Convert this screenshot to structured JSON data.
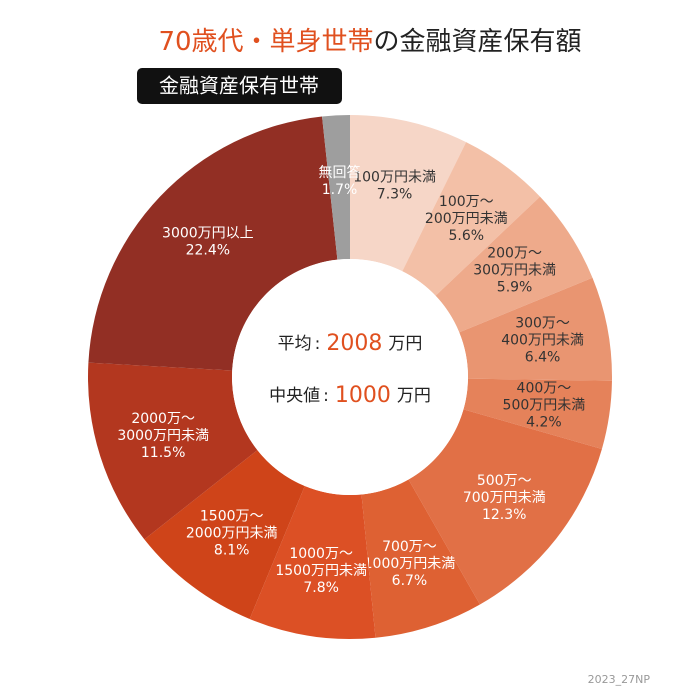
{
  "chart_data": {
    "type": "pie",
    "title": [
      "70歳代・単身世帯",
      "の金融資産保有額"
    ],
    "title_colors": [
      "#e0501f",
      "#222222"
    ],
    "subtitle": "金融資産保有世帯",
    "categories": [
      [
        "100万円未満"
      ],
      [
        "100万〜",
        "200万円未満"
      ],
      [
        "200万〜",
        "300万円未満"
      ],
      [
        "300万〜",
        "400万円未満"
      ],
      [
        "400万〜",
        "500万円未満"
      ],
      [
        "500万〜",
        "700万円未満"
      ],
      [
        "700万〜",
        "1000万円未満"
      ],
      [
        "1000万〜",
        "1500万円未満"
      ],
      [
        "1500万〜",
        "2000万円未満"
      ],
      [
        "2000万〜",
        "3000万円未満"
      ],
      [
        "3000万円以上"
      ],
      [
        "無回答"
      ]
    ],
    "values": [
      7.3,
      5.6,
      5.9,
      6.4,
      4.2,
      12.3,
      6.7,
      7.8,
      8.1,
      11.5,
      22.4,
      1.7
    ],
    "value_labels": [
      "7.3%",
      "5.6%",
      "5.9%",
      "6.4%",
      "4.2%",
      "12.3%",
      "6.7%",
      "7.8%",
      "8.1%",
      "11.5%",
      "22.4%",
      "1.7%"
    ],
    "colors": [
      "#f6d6c7",
      "#f3c0a7",
      "#eeaa8b",
      "#e99571",
      "#e5825a",
      "#e17046",
      "#de6133",
      "#dc5025",
      "#cf4419",
      "#b3371f",
      "#922f24",
      "#9e9e9e"
    ],
    "label_colors": [
      "#333333",
      "#333333",
      "#333333",
      "#333333",
      "#333333",
      "#ffffff",
      "#ffffff",
      "#ffffff",
      "#ffffff",
      "#ffffff",
      "#ffffff",
      "#ffffff"
    ],
    "center": [
      {
        "label": "平均",
        "separator": ":",
        "value": 2008,
        "unit": "万円"
      },
      {
        "label": "中央値",
        "separator": ":",
        "value": 1000,
        "unit": "万円"
      }
    ],
    "center_value_color": "#e0501f",
    "source": "2023_27NP"
  }
}
